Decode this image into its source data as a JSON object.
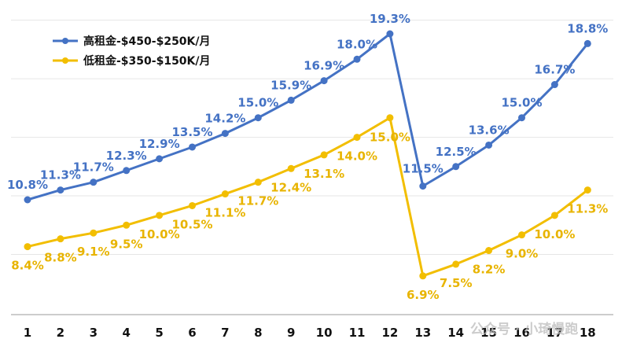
{
  "chart_data": {
    "type": "line",
    "title": "",
    "xlabel": "",
    "ylabel": "",
    "ylim": [
      5,
      20
    ],
    "grid": true,
    "legend_position": "top-left",
    "x": [
      1,
      2,
      3,
      4,
      5,
      6,
      7,
      8,
      9,
      10,
      11,
      12,
      13,
      14,
      15,
      16,
      17,
      18
    ],
    "series": [
      {
        "name": "高租金-$450-$250K/月",
        "color": "#4472C4",
        "values": [
          10.8,
          11.3,
          11.7,
          12.3,
          12.9,
          13.5,
          14.2,
          15.0,
          15.9,
          16.9,
          18.0,
          19.3,
          11.5,
          12.5,
          13.6,
          15.0,
          16.7,
          18.8
        ],
        "labels": [
          "10.8%",
          "11.3%",
          "11.7%",
          "12.3%",
          "12.9%",
          "13.5%",
          "14.2%",
          "15.0%",
          "15.9%",
          "16.9%",
          "18.0%",
          "19.3%",
          "11.5%",
          "12.5%",
          "13.6%",
          "15.0%",
          "16.7%",
          "18.8%"
        ]
      },
      {
        "name": "低租金-$350-$150K/月",
        "color": "#F2BE00",
        "values": [
          8.4,
          8.8,
          9.1,
          9.5,
          10.0,
          10.5,
          11.1,
          11.7,
          12.4,
          13.1,
          14.0,
          15.0,
          6.9,
          7.5,
          8.2,
          9.0,
          10.0,
          11.3
        ],
        "labels": [
          "8.4%",
          "8.8%",
          "9.1%",
          "9.5%",
          "10.0%",
          "10.5%",
          "11.1%",
          "11.7%",
          "12.4%",
          "13.1%",
          "14.0%",
          "15.0%",
          "6.9%",
          "7.5%",
          "8.2%",
          "9.0%",
          "10.0%",
          "11.3%"
        ]
      }
    ]
  },
  "watermark": "公众号 · 小琦慢跑"
}
